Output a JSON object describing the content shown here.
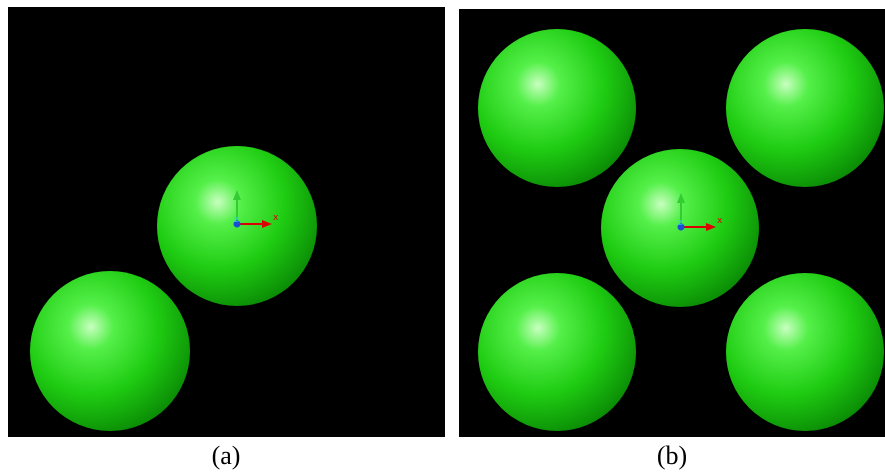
{
  "panels": [
    {
      "caption": "(a)",
      "axis_x": "x",
      "axis_z": "z"
    },
    {
      "caption": "(b)",
      "axis_x": "x",
      "axis_z": "z"
    }
  ]
}
